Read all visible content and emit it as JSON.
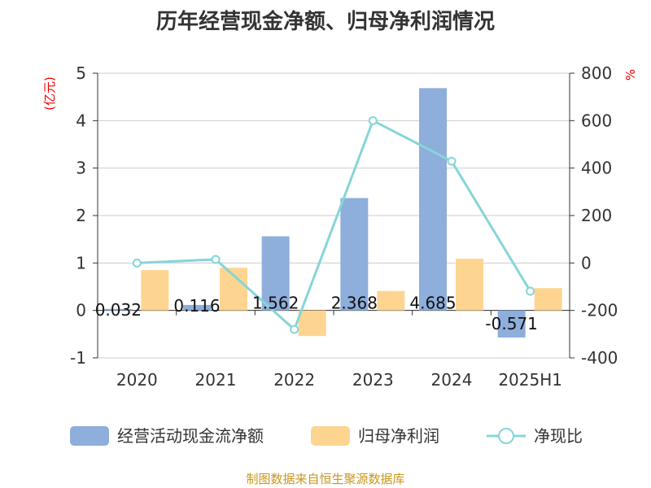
{
  "chart_data": {
    "type": "bar",
    "title": "历年经营现金净额、归母净利润情况",
    "categories": [
      "2020",
      "2021",
      "2022",
      "2023",
      "2024",
      "2025H1"
    ],
    "ylabel": "(亿元)",
    "y2label": "%",
    "ylim": [
      -1,
      5
    ],
    "y2lim": [
      -400,
      800
    ],
    "yticks": [
      -1,
      0,
      1,
      2,
      3,
      4,
      5
    ],
    "y2ticks": [
      -400,
      -200,
      0,
      200,
      400,
      600,
      800
    ],
    "grid": true,
    "legend_position": "bottom",
    "series": [
      {
        "name": "经营活动现金流净额",
        "type": "bar",
        "axis": "left",
        "color": "#8eaedb",
        "values": [
          0.032,
          0.116,
          1.562,
          2.368,
          4.685,
          -0.571
        ],
        "labels": [
          "0.032",
          "0.116",
          "1.562",
          "2.368",
          "4.685",
          "-0.571"
        ]
      },
      {
        "name": "归母净利润",
        "type": "bar",
        "axis": "left",
        "color": "#fdd591",
        "values": [
          0.85,
          0.9,
          -0.54,
          0.41,
          1.09,
          0.47
        ]
      },
      {
        "name": "净现比",
        "type": "line",
        "axis": "right",
        "color": "#86d5d8",
        "values": [
          0,
          15,
          -280,
          600,
          429,
          -119
        ]
      }
    ]
  },
  "source": "制图数据来自恒生聚源数据库"
}
